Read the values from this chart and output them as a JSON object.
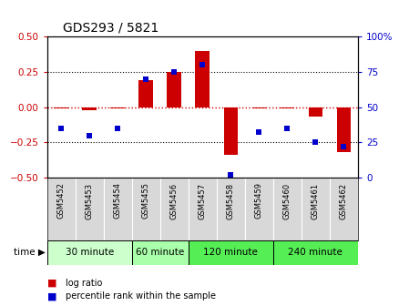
{
  "title": "GDS293 / 5821",
  "samples": [
    "GSM5452",
    "GSM5453",
    "GSM5454",
    "GSM5455",
    "GSM5456",
    "GSM5457",
    "GSM5458",
    "GSM5459",
    "GSM5460",
    "GSM5461",
    "GSM5462"
  ],
  "log_ratio": [
    -0.01,
    -0.02,
    -0.01,
    0.19,
    0.25,
    0.4,
    -0.34,
    -0.01,
    -0.01,
    -0.07,
    -0.32
  ],
  "percentile_rank": [
    35,
    30,
    35,
    70,
    75,
    80,
    2,
    32,
    35,
    25,
    22
  ],
  "ylim_left": [
    -0.5,
    0.5
  ],
  "ylim_right": [
    0,
    100
  ],
  "yticks_left": [
    -0.5,
    -0.25,
    0.0,
    0.25,
    0.5
  ],
  "yticks_right": [
    0,
    25,
    50,
    75,
    100
  ],
  "bar_color": "#cc0000",
  "dot_color": "#0000cc",
  "dot_size": 25,
  "time_groups": [
    {
      "label": "30 minute",
      "start": 0,
      "end": 3,
      "color": "#ccffcc"
    },
    {
      "label": "60 minute",
      "start": 3,
      "end": 5,
      "color": "#aaffaa"
    },
    {
      "label": "120 minute",
      "start": 5,
      "end": 8,
      "color": "#55ee55"
    },
    {
      "label": "240 minute",
      "start": 8,
      "end": 11,
      "color": "#55ee55"
    }
  ],
  "legend_bar_color": "#cc0000",
  "legend_dot_color": "#0000cc",
  "legend_bar_label": "log ratio",
  "legend_dot_label": "percentile rank within the sample",
  "xlabel_time": "time",
  "background_color": "#ffffff",
  "plot_bg": "#ffffff",
  "tick_color_left": "#cc0000",
  "tick_color_right": "#0000cc",
  "hline_color_zero": "#cc0000",
  "hline_color_pm25": "#000000",
  "sample_box_color": "#d8d8d8",
  "right_axis_suffix": "%"
}
